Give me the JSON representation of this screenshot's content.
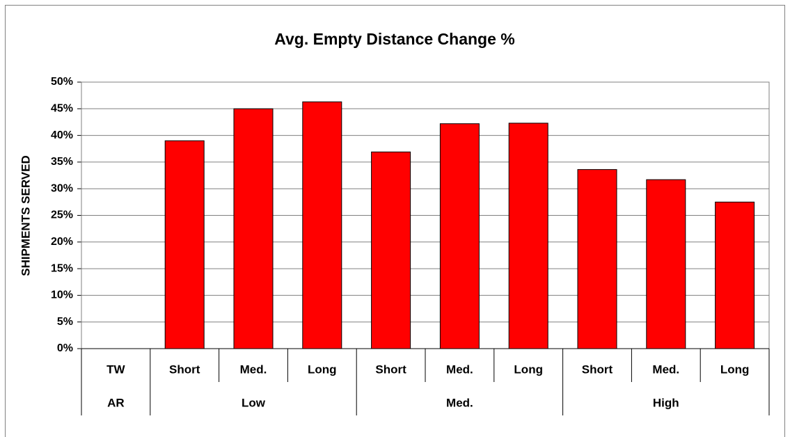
{
  "chart_data": {
    "type": "bar",
    "title": "Avg. Empty Distance Change %",
    "y_label": "SHIPMENTS SERVED",
    "categories": [
      "TW",
      "Short",
      "Med.",
      "Long",
      "Short",
      "Med.",
      "Long",
      "Short",
      "Med.",
      "Long"
    ],
    "groups": [
      {
        "label": "AR",
        "span": 1
      },
      {
        "label": "Low",
        "span": 3
      },
      {
        "label": "Med.",
        "span": 3
      },
      {
        "label": "High",
        "span": 3
      }
    ],
    "values": [
      null,
      39.0,
      45.0,
      46.3,
      36.9,
      42.2,
      42.3,
      33.6,
      31.7,
      27.5
    ],
    "color": "#ff0000",
    "ylim": [
      0,
      50
    ],
    "yticks": [
      {
        "value": 0,
        "label": "0%"
      },
      {
        "value": 5,
        "label": "5%"
      },
      {
        "value": 10,
        "label": "10%"
      },
      {
        "value": 15,
        "label": "15%"
      },
      {
        "value": 20,
        "label": "20%"
      },
      {
        "value": 25,
        "label": "25%"
      },
      {
        "value": 30,
        "label": "30%"
      },
      {
        "value": 35,
        "label": "35%"
      },
      {
        "value": 40,
        "label": "40%"
      },
      {
        "value": 45,
        "label": "45%"
      },
      {
        "value": 50,
        "label": "50%"
      }
    ],
    "grid": true
  }
}
